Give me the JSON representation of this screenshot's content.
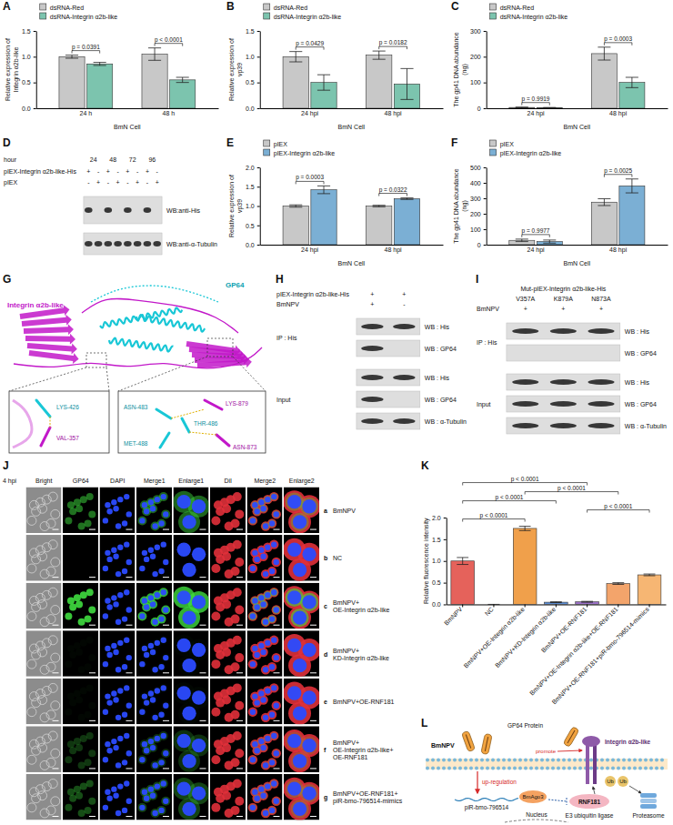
{
  "chart_data": [
    {
      "panel": "A",
      "type": "bar",
      "y_label": "Relative expression of Integrin α2b-like",
      "x_label": "BmN Cell",
      "categories": [
        "24 h",
        "48 h"
      ],
      "series": [
        {
          "name": "dsRNA-Red",
          "color": "#c8c8c8",
          "values": [
            1.0,
            1.05
          ],
          "errors": [
            0.03,
            0.12
          ]
        },
        {
          "name": "dsRNA-Integrin α2b-like",
          "color": "#7cc4ae",
          "values": [
            0.86,
            0.55
          ],
          "errors": [
            0.03,
            0.05
          ]
        }
      ],
      "annotations": [
        "p = 0.0391",
        "p < 0.0001"
      ],
      "ylim": [
        0,
        1.5
      ],
      "yticks": [
        {
          "value": 0,
          "label": "0.0"
        },
        0.5,
        {
          "value": 1,
          "label": "1.0"
        },
        1.5
      ],
      "legend": "top"
    },
    {
      "panel": "B",
      "type": "bar",
      "y_label": "Relative expression of vp39",
      "x_label": "BmN Cell",
      "categories": [
        "24 hpi",
        "48 hpi"
      ],
      "series": [
        {
          "name": "dsRNA-Red",
          "color": "#c8c8c8",
          "values": [
            1.0,
            1.03
          ],
          "errors": [
            0.1,
            0.08
          ]
        },
        {
          "name": "dsRNA-Integrin α2b-like",
          "color": "#7cc4ae",
          "values": [
            0.5,
            0.47
          ],
          "errors": [
            0.15,
            0.3
          ]
        }
      ],
      "annotations": [
        "p = 0.0429",
        "p = 0.0182"
      ],
      "ylim": [
        0,
        1.5
      ],
      "yticks": [
        {
          "value": 0,
          "label": "0.0"
        },
        0.5,
        {
          "value": 1,
          "label": "1.0"
        },
        1.5
      ],
      "legend": "top"
    },
    {
      "panel": "C",
      "type": "bar",
      "y_label": "The gp41 DNA abundance (ng)",
      "x_label": "BmN Cell",
      "categories": [
        "24 hpi",
        "48 hpi"
      ],
      "series": [
        {
          "name": "dsRNA-Red",
          "color": "#c8c8c8",
          "values": [
            3,
            212
          ],
          "errors": [
            1.5,
            25
          ]
        },
        {
          "name": "dsRNA-Integrin α2b-like",
          "color": "#7cc4ae",
          "values": [
            2,
            100
          ],
          "errors": [
            1,
            20
          ]
        }
      ],
      "annotations": [
        "p = 0.9919",
        "p = 0.0003"
      ],
      "ylim": [
        0,
        300
      ],
      "yticks": [
        0,
        100,
        200,
        300
      ],
      "legend": "top"
    },
    {
      "panel": "E",
      "type": "bar",
      "y_label": "Relative expression of vp39",
      "x_label": "BmN Cell",
      "categories": [
        "24 hpi",
        "48 hpi"
      ],
      "series": [
        {
          "name": "pIEX",
          "color": "#c8c8c8",
          "values": [
            1.0,
            1.0
          ],
          "errors": [
            0.03,
            0.02
          ]
        },
        {
          "name": "pIEX-Integrin α2b-like",
          "color": "#7bafd4",
          "values": [
            1.42,
            1.19
          ],
          "errors": [
            0.1,
            0.02
          ]
        }
      ],
      "annotations": [
        "p = 0.0003",
        "p = 0.0322"
      ],
      "ylim": [
        0,
        2
      ],
      "yticks": [
        {
          "value": 0,
          "label": "0.0"
        },
        0.5,
        {
          "value": 1,
          "label": "1.0"
        },
        1.5,
        {
          "value": 2,
          "label": "2.0"
        }
      ],
      "legend": "top"
    },
    {
      "panel": "F",
      "type": "bar",
      "y_label": "The gp41 DNA abundance (ng)",
      "x_label": "BmN Cell",
      "categories": [
        "24 hpi",
        "48 hpi"
      ],
      "series": [
        {
          "name": "pIEX",
          "color": "#c8c8c8",
          "values": [
            28,
            275
          ],
          "errors": [
            8,
            22
          ]
        },
        {
          "name": "pIEX-Integrin α2b-like",
          "color": "#7bafd4",
          "values": [
            20,
            380
          ],
          "errors": [
            10,
            45
          ]
        }
      ],
      "annotations": [
        "p = 0.9977",
        "p = 0.0025"
      ],
      "ylim": [
        0,
        500
      ],
      "yticks": [
        0,
        100,
        200,
        300,
        400,
        500
      ],
      "legend": "top"
    },
    {
      "panel": "K",
      "type": "bar",
      "y_label": "Relative fluorescence intensity",
      "categories": [
        "BmNPV",
        "NC",
        "BmNPV+OE-Integrin α2b-like",
        "BmNPV+KD-Integrin α2b-like",
        "BmNPV+OE-RNF181",
        "BmNPV+OE-Integrin α2b-like+OE-RNF181",
        "BmNPV+OE-RNF181+piR-bmo-796514-mimics"
      ],
      "values": [
        1.0,
        0,
        1.75,
        0.05,
        0.06,
        0.48,
        0.68
      ],
      "errors": [
        0.08,
        0,
        0.05,
        0.01,
        0.01,
        0.02,
        0.02
      ],
      "colors": [
        "#e5625b",
        "#b5b5b5",
        "#f0a04b",
        "#5d8fd6",
        "#9b72c7",
        "#f3a46b",
        "#f6b673"
      ],
      "comparisons": [
        {
          "between": [
            "BmNPV",
            "BmNPV+OE-Integrin α2b-like"
          ],
          "label": "p < 0.0001"
        },
        {
          "between": [
            "BmNPV+OE-RNF181",
            "BmNPV+OE-RNF181+piR-bmo-796514-mimics"
          ],
          "label": "p < 0.0001"
        },
        {
          "between": [
            "BmNPV",
            "BmNPV+KD-Integrin α2b-like"
          ],
          "label": "p < 0.0001"
        },
        {
          "between": [
            "BmNPV+OE-Integrin α2b-like",
            "BmNPV+OE-Integrin α2b-like+OE-RNF181"
          ],
          "label": "p < 0.0001"
        },
        {
          "between": [
            "BmNPV",
            "BmNPV+OE-RNF181"
          ],
          "label": "p < 0.0001"
        }
      ],
      "ylim": [
        0,
        2
      ],
      "yticks": [
        {
          "value": 0,
          "label": "0.0"
        },
        0.5,
        {
          "value": 1,
          "label": "1.0"
        },
        1.5,
        {
          "value": 2,
          "label": "2.0"
        }
      ]
    }
  ],
  "figure": {
    "D": {
      "letter": "D",
      "time_label": "hour",
      "times": [
        "24",
        "48",
        "72",
        "96"
      ],
      "conditions": [
        {
          "label": "pIEX-Integrin α2b-like-His",
          "signs": [
            "+",
            "-",
            "+",
            "-",
            "+",
            "-",
            "+",
            "-"
          ]
        },
        {
          "label": "pIEX",
          "signs": [
            "-",
            "+",
            "-",
            "+",
            "-",
            "+",
            "-",
            "+"
          ]
        }
      ],
      "blots": [
        "WB:anti-His",
        "WB:anti-α-Tubulin"
      ]
    },
    "G": {
      "letter": "G",
      "gp64": "GP64",
      "integrin": "Integrin α2b-like",
      "inset1": [
        "LYS-426",
        "VAL-357"
      ],
      "inset2": [
        "LYS-879",
        "ASN-483",
        "THR-486",
        "MET-488",
        "ASN-873"
      ]
    },
    "H": {
      "letter": "H",
      "conditions": [
        {
          "label": "pIEX-Integrin α2b-like-His",
          "signs": [
            "+",
            "+"
          ]
        },
        {
          "label": "BmNPV",
          "signs": [
            "+",
            "-"
          ]
        }
      ],
      "sections": [
        {
          "label": "IP : His",
          "blots": [
            "WB : His",
            "WB : GP64"
          ]
        },
        {
          "label": "Input",
          "blots": [
            "WB : His",
            "WB : GP64",
            "WB : α-Tubulin"
          ]
        }
      ]
    },
    "I": {
      "letter": "I",
      "header": "Mut-pIEX-Integrin α2b-like-His",
      "mutants": [
        "V357A",
        "K879A",
        "N873A"
      ],
      "conditions": [
        {
          "label": "BmNPV",
          "signs": [
            "+",
            "+",
            "+"
          ]
        }
      ],
      "sections": [
        {
          "label": "IP : His",
          "blots": [
            "WB : His",
            "WB : GP64"
          ]
        },
        {
          "label": "Input",
          "blots": [
            "WB : His",
            "WB : GP64",
            "WB : α-Tubulin"
          ]
        }
      ]
    },
    "J": {
      "letter": "J",
      "time": "4 hpi",
      "columns": [
        "Bright",
        "GP64",
        "DAPI",
        "Merge1",
        "Enlarge1",
        "DiI",
        "Merge2",
        "Enlarge2"
      ],
      "rows": [
        {
          "letter": "a",
          "label": "BmNPV"
        },
        {
          "letter": "b",
          "label": "NC"
        },
        {
          "letter": "c",
          "label": "BmNPV+OE-Integrin α2b-like"
        },
        {
          "letter": "d",
          "label": "BmNPV+KD-Integrin α2b-like"
        },
        {
          "letter": "e",
          "label": "BmNPV+OE-RNF181"
        },
        {
          "letter": "f",
          "label": "BmNPV+OE-Integrin α2b-like+OE-RNF181"
        },
        {
          "letter": "g",
          "label": "BmNPV+OE-RNF181+piR-bmo-796514-mimics"
        }
      ]
    },
    "L": {
      "letter": "L",
      "virus": "BmNPV",
      "gp64": "GP64 Protein",
      "promote": "promote",
      "integrin": "Integrin α2b-like",
      "upregulation": "up-regulation",
      "ago": "BmAgo3",
      "pirna": "piR-bmo-796514",
      "rnf": "RNF181",
      "e3": "E3 ubiquitin ligase",
      "ub": "Ub",
      "proteasome": "Proteasome",
      "nucleus": "Nucleus"
    }
  }
}
